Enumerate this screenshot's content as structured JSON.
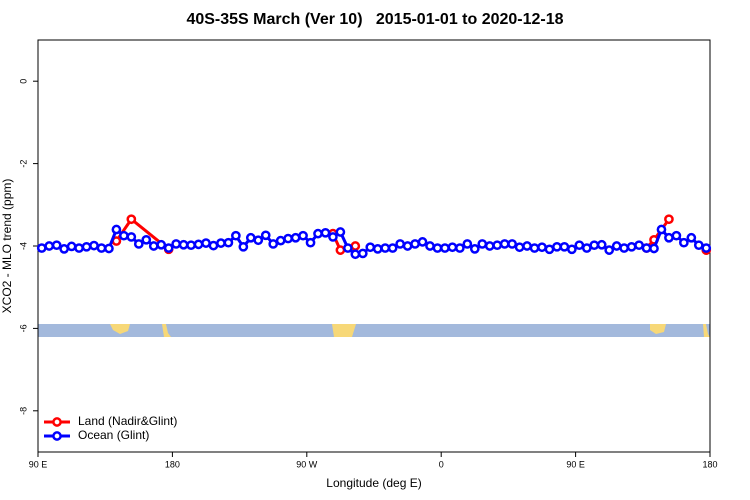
{
  "chart_data": {
    "type": "line",
    "title": "40S-35S March (Ver 10)   2015-01-01 to 2020-12-18",
    "x_label": "Longitude (deg E)",
    "y_label": "XCO2 - MLO trend (ppm)",
    "xlim": [
      90,
      540
    ],
    "xticks": [
      {
        "value": 90,
        "label": "90 E"
      },
      {
        "value": 180,
        "label": "180"
      },
      {
        "value": 270,
        "label": "90 W"
      },
      {
        "value": 360,
        "label": "0"
      },
      {
        "value": 450,
        "label": "90 E"
      },
      {
        "value": 540,
        "label": "180"
      }
    ],
    "ylim": [
      -9,
      1
    ],
    "yticks": [
      0,
      -2,
      -4,
      -6,
      -8
    ],
    "legend": "bottom-left",
    "series": [
      {
        "name": "Land (Nadir&Glint)",
        "color": "#ff0000",
        "x": [
          142.5,
          152.5,
          177.5,
          230,
          287.5,
          292.5,
          302.5,
          400,
          497.5,
          502.5,
          512.5,
          525,
          537.5
        ],
        "values": [
          -3.88,
          -3.35,
          -4.08,
          null,
          -3.7,
          -4.1,
          -4.0,
          null,
          -4.05,
          -3.85,
          -3.35,
          null,
          -4.1
        ]
      },
      {
        "name": "Ocean (Glint)",
        "color": "#0000ff",
        "x": [
          92.5,
          97.5,
          102.5,
          107.5,
          112.5,
          117.5,
          122.5,
          127.5,
          132.5,
          137.5,
          142.5,
          147.5,
          152.5,
          157.5,
          162.5,
          167.5,
          172.5,
          177.5,
          182.5,
          187.5,
          192.5,
          197.5,
          202.5,
          207.5,
          212.5,
          217.5,
          222.5,
          227.5,
          232.5,
          237.5,
          242.5,
          247.5,
          252.5,
          257.5,
          262.5,
          267.5,
          272.5,
          277.5,
          282.5,
          287.5,
          292.5,
          297.5,
          302.5,
          307.5,
          312.5,
          317.5,
          322.5,
          327.5,
          332.5,
          337.5,
          342.5,
          347.5,
          352.5,
          357.5,
          362.5,
          367.5,
          372.5,
          377.5,
          382.5,
          387.5,
          392.5,
          397.5,
          402.5,
          407.5,
          412.5,
          417.5,
          422.5,
          427.5,
          432.5,
          437.5,
          442.5,
          447.5,
          452.5,
          457.5,
          462.5,
          467.5,
          472.5,
          477.5,
          482.5,
          487.5,
          492.5,
          497.5,
          502.5,
          507.5,
          512.5,
          517.5,
          522.5,
          527.5,
          532.5,
          537.5
        ],
        "values": [
          -4.05,
          -4.0,
          -3.98,
          -4.07,
          -4.01,
          -4.05,
          -4.02,
          -3.99,
          -4.05,
          -4.06,
          -3.6,
          -3.75,
          -3.78,
          -3.95,
          -3.85,
          -4.0,
          -3.97,
          -4.05,
          -3.95,
          -3.97,
          -3.98,
          -3.96,
          -3.93,
          -3.99,
          -3.93,
          -3.92,
          -3.75,
          -4.02,
          -3.8,
          -3.86,
          -3.74,
          -3.95,
          -3.87,
          -3.82,
          -3.8,
          -3.75,
          -3.92,
          -3.7,
          -3.68,
          -3.78,
          -3.66,
          -4.05,
          -4.2,
          -4.18,
          -4.03,
          -4.07,
          -4.05,
          -4.05,
          -3.95,
          -4.0,
          -3.95,
          -3.9,
          -4.0,
          -4.05,
          -4.05,
          -4.03,
          -4.05,
          -3.95,
          -4.07,
          -3.95,
          -4.0,
          -3.98,
          -3.95,
          -3.95,
          -4.03,
          -4.0,
          -4.05,
          -4.03,
          -4.08,
          -4.02,
          -4.02,
          -4.08,
          -3.98,
          -4.05,
          -3.98,
          -3.97,
          -4.1,
          -4.0,
          -4.05,
          -4.02,
          -3.98,
          -4.05,
          -4.06,
          -3.6,
          -3.8,
          -3.75,
          -3.92,
          -3.8,
          -3.98,
          -4.05
        ]
      }
    ]
  }
}
